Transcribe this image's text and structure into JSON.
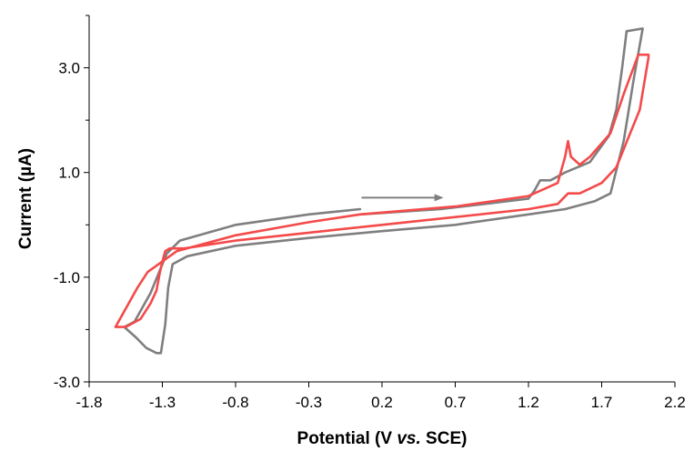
{
  "chart_data": {
    "type": "line",
    "xlabel_parts": [
      "Potential (V ",
      "vs.",
      " SCE)"
    ],
    "ylabel_parts": [
      "Current (",
      "µ",
      "A)"
    ],
    "xlim": [
      -1.8,
      2.2
    ],
    "ylim": [
      -3.0,
      4.0
    ],
    "x_ticks": [
      -1.8,
      -1.3,
      -0.8,
      -0.3,
      0.2,
      0.7,
      1.2,
      1.7,
      2.2
    ],
    "x_tick_labels": [
      "-1.8",
      "-1.3",
      "-0.8",
      "-0.3",
      "0.2",
      "0.7",
      "1.2",
      "1.7",
      "2.2"
    ],
    "y_major_ticks": [
      -3.0,
      -1.0,
      1.0,
      3.0
    ],
    "y_tick_labels": [
      "-3.0",
      "-1.0",
      "1.0",
      "3.0"
    ],
    "y_minor_ticks": [
      -2.0,
      0.0,
      2.0,
      4.0
    ],
    "grid": false,
    "legend": "none",
    "annotation": {
      "type": "arrow",
      "direction": "right",
      "from": [
        0.06,
        0.52
      ],
      "to": [
        0.62,
        0.52
      ],
      "color": "#7f7f7f"
    },
    "series": [
      {
        "color": "#7f7f7f",
        "x": [
          0.05,
          -0.3,
          -0.8,
          -1.18,
          -1.27,
          -1.38,
          -1.49,
          -1.56,
          -1.48,
          -1.41,
          -1.34,
          -1.31,
          -1.28,
          -1.26,
          -1.23,
          -1.13,
          -0.8,
          -0.3,
          0.2,
          0.7,
          1.2,
          1.45,
          1.65,
          1.76,
          1.85,
          1.92,
          1.98,
          1.98,
          1.87,
          1.84,
          1.8,
          1.75,
          1.62,
          1.45,
          1.35,
          1.28,
          1.24,
          1.2,
          0.9,
          0.6,
          0.05
        ],
        "y": [
          0.3,
          0.2,
          0.0,
          -0.3,
          -0.55,
          -1.3,
          -1.85,
          -1.95,
          -2.15,
          -2.35,
          -2.45,
          -2.45,
          -1.9,
          -1.2,
          -0.75,
          -0.6,
          -0.4,
          -0.25,
          -0.12,
          0.0,
          0.2,
          0.3,
          0.45,
          0.6,
          1.6,
          2.8,
          3.75,
          3.75,
          3.7,
          3.0,
          2.2,
          1.7,
          1.2,
          1.0,
          0.85,
          0.85,
          0.65,
          0.5,
          0.4,
          0.3,
          0.2
        ]
      },
      {
        "color": "#f44a4a",
        "x": [
          0.05,
          -0.3,
          -0.8,
          -1.2,
          -1.4,
          -1.47,
          -1.52,
          -1.62,
          -1.55,
          -1.45,
          -1.38,
          -1.34,
          -1.32,
          -1.3,
          -1.28,
          -1.25,
          -1.2,
          -1.15,
          -0.8,
          -0.3,
          0.2,
          0.7,
          1.2,
          1.4,
          1.47,
          1.55,
          1.7,
          1.8,
          1.96,
          2.02,
          2.02,
          1.95,
          1.85,
          1.76,
          1.62,
          1.55,
          1.49,
          1.47,
          1.45,
          1.4,
          1.2,
          0.7,
          0.05
        ],
        "y": [
          0.2,
          0.05,
          -0.2,
          -0.5,
          -0.9,
          -1.2,
          -1.45,
          -1.95,
          -1.95,
          -1.8,
          -1.5,
          -1.25,
          -0.95,
          -0.7,
          -0.5,
          -0.45,
          -0.45,
          -0.45,
          -0.3,
          -0.15,
          0.0,
          0.15,
          0.3,
          0.4,
          0.6,
          0.6,
          0.8,
          1.1,
          2.2,
          3.2,
          3.25,
          3.25,
          2.5,
          1.75,
          1.3,
          1.15,
          1.3,
          1.6,
          1.3,
          0.8,
          0.55,
          0.35,
          0.2
        ]
      }
    ]
  }
}
